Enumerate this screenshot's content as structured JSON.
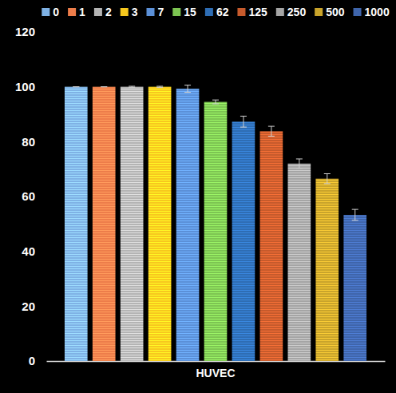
{
  "chart_data": {
    "type": "bar",
    "categories": [
      "HUVEC"
    ],
    "series": [
      {
        "name": "0",
        "color": "#7fb2e5",
        "values": [
          100
        ],
        "errors": [
          0
        ]
      },
      {
        "name": "1",
        "color": "#ed7d4a",
        "values": [
          100
        ],
        "errors": [
          0
        ]
      },
      {
        "name": "2",
        "color": "#b4b4b4",
        "values": [
          100
        ],
        "errors": [
          0.2
        ]
      },
      {
        "name": "3",
        "color": "#f7c81e",
        "values": [
          100
        ],
        "errors": [
          0.2
        ]
      },
      {
        "name": "7",
        "color": "#5b90d8",
        "values": [
          99.3
        ],
        "errors": [
          1.3
        ]
      },
      {
        "name": "15",
        "color": "#7dc552",
        "values": [
          94.5
        ],
        "errors": [
          0.7
        ]
      },
      {
        "name": "62",
        "color": "#2e6db4",
        "values": [
          87.3
        ],
        "errors": [
          2
        ]
      },
      {
        "name": "125",
        "color": "#c65a2c",
        "values": [
          83.8
        ],
        "errors": [
          1.8
        ]
      },
      {
        "name": "250",
        "color": "#a5a5a5",
        "values": [
          72
        ],
        "errors": [
          1.7
        ]
      },
      {
        "name": "500",
        "color": "#c9a42b",
        "values": [
          66.5
        ],
        "errors": [
          1.8
        ]
      },
      {
        "name": "1000",
        "color": "#3f65ab",
        "values": [
          53.3
        ],
        "errors": [
          2
        ]
      }
    ],
    "ylim": [
      0,
      120
    ],
    "yticks": [
      0,
      20,
      40,
      60,
      80,
      100,
      120
    ],
    "grid": false,
    "legend": "top"
  }
}
